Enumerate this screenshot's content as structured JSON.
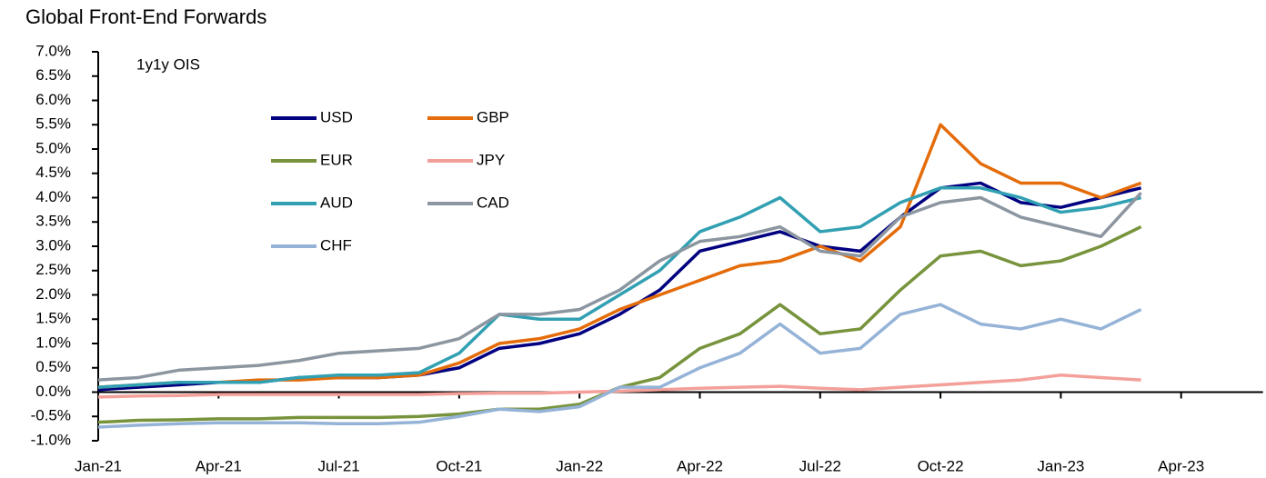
{
  "chart_data": {
    "type": "line",
    "title": "Global Front-End Forwards",
    "annotation": "1y1y OIS",
    "x": [
      "Jan-21",
      "Feb-21",
      "Mar-21",
      "Apr-21",
      "May-21",
      "Jun-21",
      "Jul-21",
      "Aug-21",
      "Sep-21",
      "Oct-21",
      "Nov-21",
      "Dec-21",
      "Jan-22",
      "Feb-22",
      "Mar-22",
      "Apr-22",
      "May-22",
      "Jun-22",
      "Jul-22",
      "Aug-22",
      "Sep-22",
      "Oct-22",
      "Nov-22",
      "Dec-22",
      "Jan-23",
      "Feb-23",
      "Mar-23",
      "Apr-23"
    ],
    "xticks": [
      "Jan-21",
      "Apr-21",
      "Jul-21",
      "Oct-21",
      "Jan-22",
      "Apr-22",
      "Jul-22",
      "Oct-22",
      "Jan-23",
      "Apr-23"
    ],
    "ylim": [
      -1.0,
      7.0
    ],
    "yticks": [
      {
        "value": -1.0,
        "label": "-1.0%"
      },
      {
        "value": -0.5,
        "label": "-0.5%"
      },
      {
        "value": 0.0,
        "label": "0.0%"
      },
      {
        "value": 0.5,
        "label": "0.5%"
      },
      {
        "value": 1.0,
        "label": "1.0%"
      },
      {
        "value": 1.5,
        "label": "1.5%"
      },
      {
        "value": 2.0,
        "label": "2.0%"
      },
      {
        "value": 2.5,
        "label": "2.5%"
      },
      {
        "value": 3.0,
        "label": "3.0%"
      },
      {
        "value": 3.5,
        "label": "3.5%"
      },
      {
        "value": 4.0,
        "label": "4.0%"
      },
      {
        "value": 4.5,
        "label": "4.5%"
      },
      {
        "value": 5.0,
        "label": "5.0%"
      },
      {
        "value": 5.5,
        "label": "5.5%"
      },
      {
        "value": 6.0,
        "label": "6.0%"
      },
      {
        "value": 6.5,
        "label": "6.5%"
      },
      {
        "value": 7.0,
        "label": "7.0%"
      }
    ],
    "series": [
      {
        "name": "USD",
        "color": "#000080",
        "values": [
          0.05,
          0.1,
          0.15,
          0.2,
          0.2,
          0.3,
          0.3,
          0.3,
          0.35,
          0.5,
          0.9,
          1.0,
          1.2,
          1.6,
          2.1,
          2.9,
          3.1,
          3.3,
          3.0,
          2.9,
          3.6,
          4.2,
          4.3,
          3.9,
          3.8,
          4.0,
          4.2,
          null
        ]
      },
      {
        "name": "GBP",
        "color": "#e46c0a",
        "values": [
          0.1,
          0.15,
          0.2,
          0.2,
          0.25,
          0.25,
          0.3,
          0.3,
          0.35,
          0.6,
          1.0,
          1.1,
          1.3,
          1.7,
          2.0,
          2.3,
          2.6,
          2.7,
          3.0,
          2.7,
          3.4,
          5.5,
          4.7,
          4.3,
          4.3,
          4.0,
          4.3,
          null
        ]
      },
      {
        "name": "EUR",
        "color": "#77933c",
        "values": [
          -0.62,
          -0.58,
          -0.57,
          -0.55,
          -0.55,
          -0.52,
          -0.52,
          -0.52,
          -0.5,
          -0.45,
          -0.35,
          -0.35,
          -0.25,
          0.1,
          0.3,
          0.9,
          1.2,
          1.8,
          1.2,
          1.3,
          2.1,
          2.8,
          2.9,
          2.6,
          2.7,
          3.0,
          3.4,
          null
        ]
      },
      {
        "name": "JPY",
        "color": "#f4a09a",
        "values": [
          -0.1,
          -0.08,
          -0.07,
          -0.05,
          -0.05,
          -0.05,
          -0.05,
          -0.05,
          -0.05,
          -0.03,
          -0.02,
          -0.02,
          0,
          0.02,
          0.05,
          0.08,
          0.1,
          0.12,
          0.08,
          0.05,
          0.1,
          0.15,
          0.2,
          0.25,
          0.35,
          0.3,
          0.25,
          null
        ]
      },
      {
        "name": "AUD",
        "color": "#31a0b2",
        "values": [
          0.1,
          0.15,
          0.2,
          0.2,
          0.2,
          0.3,
          0.35,
          0.35,
          0.4,
          0.8,
          1.6,
          1.5,
          1.5,
          2.0,
          2.5,
          3.3,
          3.6,
          4.0,
          3.3,
          3.4,
          3.9,
          4.2,
          4.2,
          4.0,
          3.7,
          3.8,
          4.0,
          null
        ]
      },
      {
        "name": "CAD",
        "color": "#8c96a0",
        "values": [
          0.25,
          0.3,
          0.45,
          0.5,
          0.55,
          0.65,
          0.8,
          0.85,
          0.9,
          1.1,
          1.6,
          1.6,
          1.7,
          2.1,
          2.7,
          3.1,
          3.2,
          3.4,
          2.9,
          2.8,
          3.6,
          3.9,
          4.0,
          3.6,
          3.4,
          3.2,
          4.1,
          null
        ]
      },
      {
        "name": "CHF",
        "color": "#95b3d7",
        "values": [
          -0.72,
          -0.68,
          -0.65,
          -0.63,
          -0.63,
          -0.63,
          -0.65,
          -0.65,
          -0.62,
          -0.5,
          -0.35,
          -0.4,
          -0.3,
          0.1,
          0.1,
          0.5,
          0.8,
          1.4,
          0.8,
          0.9,
          1.6,
          1.8,
          1.4,
          1.3,
          1.5,
          1.3,
          1.7,
          null
        ]
      }
    ]
  }
}
